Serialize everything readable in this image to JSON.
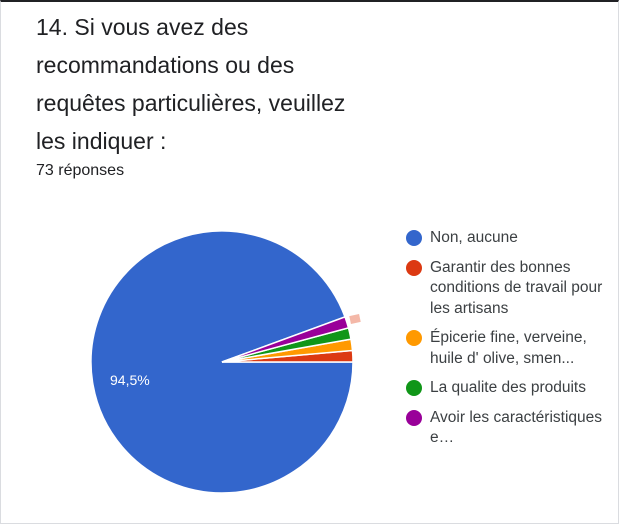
{
  "question": {
    "title": "14. Si vous avez des recommandations ou des requêtes particulières, veuillez les indiquer :",
    "response_count": "73 réponses"
  },
  "chart_data": {
    "type": "pie",
    "title": "14. Si vous avez des recommandations ou des requêtes particulières, veuillez les indiquer :",
    "total_responses": 73,
    "slices": [
      {
        "label": "Non, aucune",
        "percent": 94.5,
        "color": "#3366cc",
        "data_label": "94,5%"
      },
      {
        "label": "Garantir des bonnes conditions de travail pour les artisans",
        "percent": 1.4,
        "color": "#dc3912",
        "data_label": ""
      },
      {
        "label": "Épicerie fine, verveine, huile d' olive, smen...",
        "percent": 1.4,
        "color": "#ff9900",
        "data_label": ""
      },
      {
        "label": "La qualite des produits",
        "percent": 1.4,
        "color": "#109618",
        "data_label": ""
      },
      {
        "label": "Avoir les caractéristiques e…",
        "percent": 1.4,
        "color": "#990099",
        "data_label": ""
      }
    ],
    "legend_position": "right"
  }
}
